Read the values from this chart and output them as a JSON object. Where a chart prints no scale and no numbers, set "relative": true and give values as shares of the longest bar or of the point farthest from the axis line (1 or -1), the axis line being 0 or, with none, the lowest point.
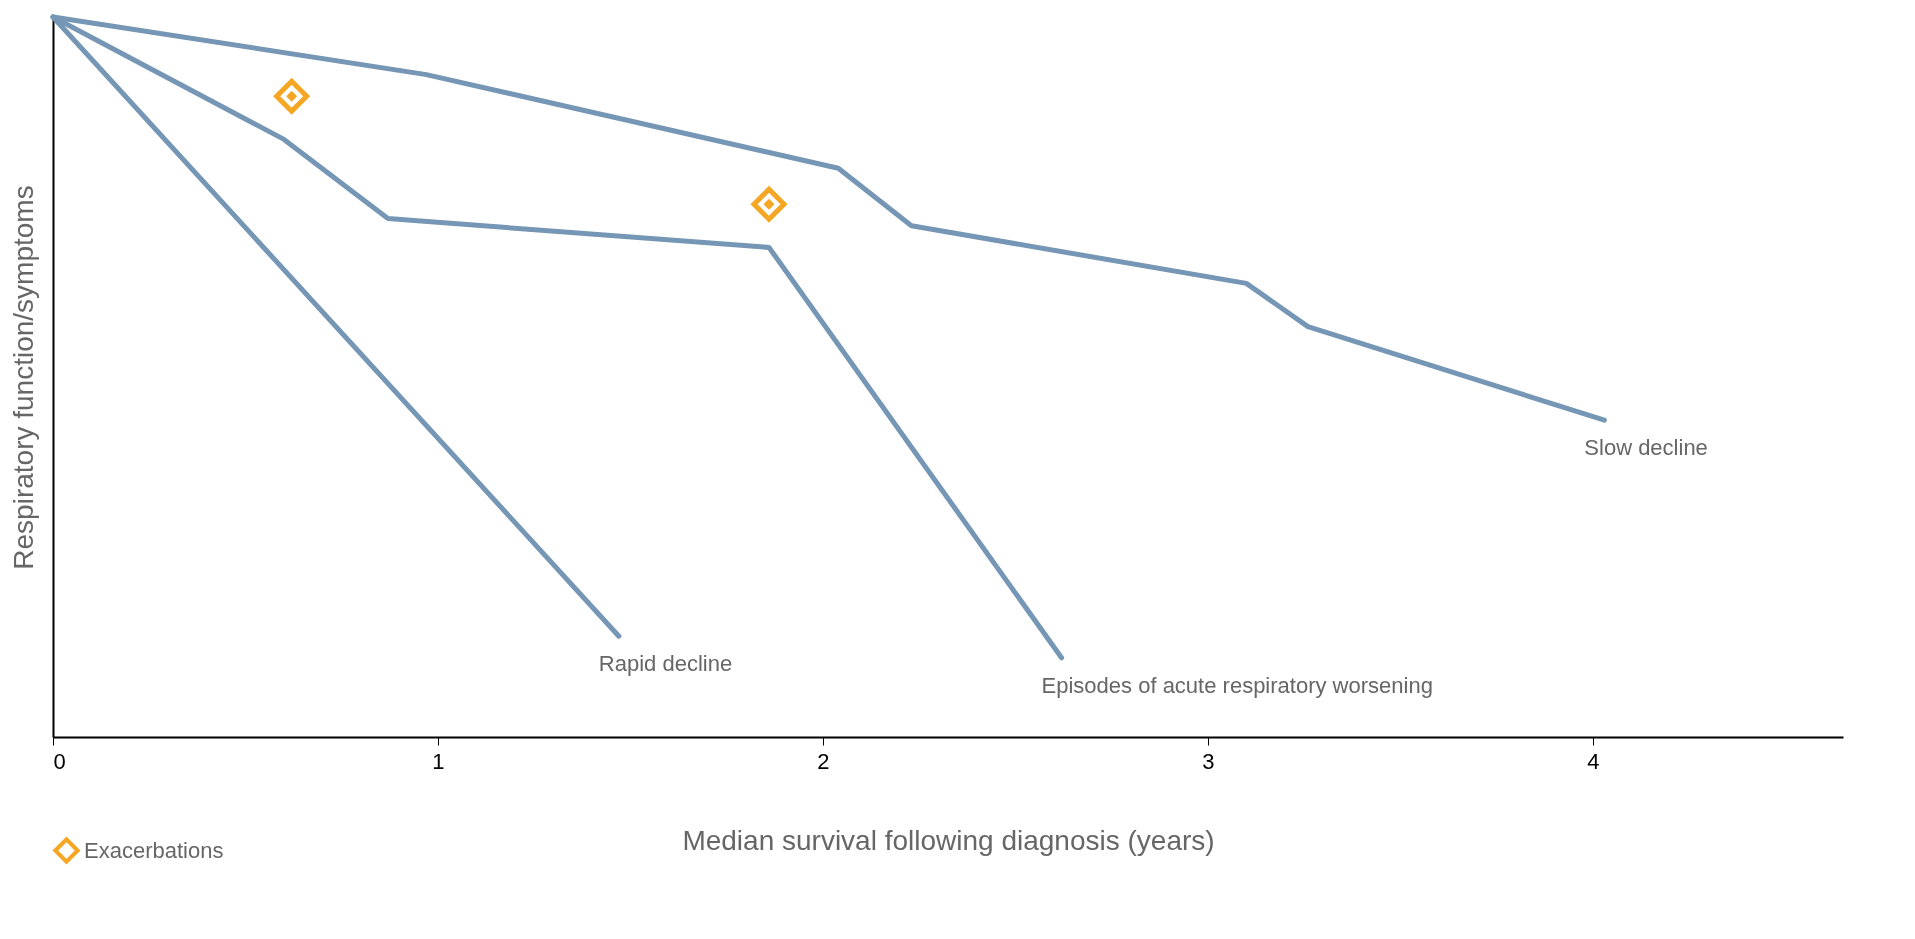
{
  "chart_data": {
    "type": "line",
    "relative": true,
    "xlabel": "Median survival following diagnosis (years)",
    "ylabel": "Respiratory function/symptoms",
    "xlim": [
      0,
      4.65
    ],
    "xticks": [
      0,
      1,
      2,
      3,
      4
    ],
    "grid": false,
    "legend": "bottom left",
    "marker": "none",
    "line_style": "solid",
    "tick_labels": "x",
    "series": [
      {
        "name": "Rapid decline",
        "color": "#7596b5",
        "x": [
          0,
          1.47
        ],
        "values": [
          1,
          0.14
        ]
      },
      {
        "name": "Episodes of acute respiratory worsening",
        "color": "#7596b5",
        "x": [
          0,
          0.6,
          0.87,
          1.86,
          2.62
        ],
        "values": [
          1,
          0.83,
          0.72,
          0.68,
          0.11
        ]
      },
      {
        "name": "Slow decline",
        "color": "#7596b5",
        "x": [
          0,
          0.97,
          2.04,
          2.23,
          3.1,
          3.26,
          4.03
        ],
        "values": [
          1,
          0.92,
          0.79,
          0.71,
          0.63,
          0.57,
          0.44
        ]
      },
      {
        "name": "Exacerbations",
        "type": "scatter",
        "marker": "diamond",
        "color": "#f5a623",
        "x": [
          0.62,
          1.86
        ],
        "values": [
          0.89,
          0.74
        ]
      }
    ]
  }
}
